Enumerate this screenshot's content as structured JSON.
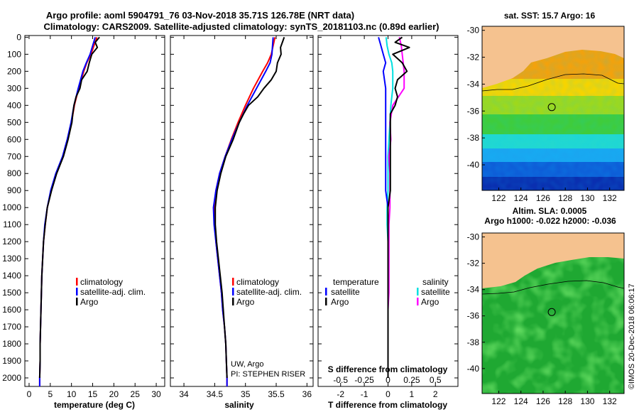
{
  "header": {
    "line1": "Argo profile: aoml 5904791_76 03-Nov-2018 35.71S 126.78E (NRT data)",
    "line2": "Climatology: CARS2009. Satellite-adjusted climatology: synTS_20181103.nc (0.89d earlier)"
  },
  "depth_ticks": [
    "0",
    "100",
    "200",
    "300",
    "400",
    "500",
    "600",
    "700",
    "800",
    "900",
    "1000",
    "1100",
    "1200",
    "1300",
    "1400",
    "1500",
    "1600",
    "1700",
    "1800",
    "1900",
    "2000"
  ],
  "colors": {
    "climatology": "#ff0000",
    "satellite": "#0000ff",
    "argo": "#000000",
    "satellite_s": "#00e0e0",
    "argo_s": "#ff00ff",
    "land": "#f5c28f"
  },
  "chart_data": [
    {
      "type": "line",
      "xlabel": "temperature (deg C)",
      "xticks": [
        "0",
        "5",
        "10",
        "15",
        "20",
        "25",
        "30"
      ],
      "xlim": [
        -1,
        32
      ],
      "ylim": [
        2050,
        -10
      ],
      "legend": [
        "climatology",
        "satellite-adj. clim.",
        "Argo"
      ],
      "series": [
        {
          "name": "climatology",
          "depth": [
            0,
            50,
            100,
            150,
            200,
            300,
            400,
            500,
            600,
            700,
            800,
            900,
            1000,
            1100,
            1200,
            1300,
            1400,
            1500,
            1600,
            1700,
            1800,
            1900,
            2000,
            2050
          ],
          "values": [
            16.0,
            15.3,
            14.6,
            13.6,
            12.9,
            11.7,
            10.7,
            10.0,
            9.1,
            8.0,
            6.4,
            5.2,
            4.3,
            3.8,
            3.4,
            3.2,
            3.0,
            2.9,
            2.8,
            2.7,
            2.6,
            2.6,
            2.5,
            2.5
          ]
        },
        {
          "name": "satellite-adj. clim.",
          "depth": [
            0,
            50,
            100,
            150,
            200,
            300,
            400,
            500,
            600,
            700,
            800,
            900,
            1000,
            1100,
            1200,
            1300,
            1400,
            1500,
            1600,
            1700,
            1800,
            1900,
            2000,
            2050
          ],
          "values": [
            15.6,
            15.0,
            14.4,
            13.5,
            12.7,
            11.6,
            10.6,
            9.9,
            9.0,
            7.9,
            6.3,
            5.1,
            4.3,
            3.7,
            3.4,
            3.2,
            3.0,
            2.9,
            2.8,
            2.7,
            2.6,
            2.6,
            2.5,
            2.5
          ]
        },
        {
          "name": "Argo",
          "depth": [
            0,
            30,
            60,
            100,
            150,
            200,
            250,
            300,
            350,
            400,
            450,
            500,
            600,
            700,
            800,
            900,
            1000,
            1100,
            1200,
            1300,
            1400,
            1500,
            1600,
            1700,
            1800,
            1900,
            2000
          ],
          "values": [
            16.6,
            15.6,
            16.1,
            14.8,
            14.2,
            13.7,
            12.4,
            12.0,
            11.1,
            10.6,
            10.3,
            10.1,
            9.2,
            8.1,
            6.5,
            5.3,
            4.3,
            3.8,
            3.4,
            3.2,
            3.0,
            2.9,
            2.8,
            2.7,
            2.6,
            2.6,
            2.5
          ]
        }
      ]
    },
    {
      "type": "line",
      "xlabel": "salinity",
      "xticks": [
        "34",
        "34.5",
        "35",
        "35.5",
        "36"
      ],
      "xlim": [
        33.78,
        36.1
      ],
      "ylim": [
        2050,
        -10
      ],
      "legend": [
        "climatology",
        "satellite-adj. clim.",
        "Argo"
      ],
      "annotations": [
        "UW, Argo",
        "PI: STEPHEN RISER"
      ],
      "series": [
        {
          "name": "climatology",
          "depth": [
            0,
            50,
            100,
            150,
            200,
            300,
            400,
            500,
            600,
            700,
            800,
            900,
            1000,
            1100,
            1200,
            1300,
            1400,
            1500,
            1600,
            1700,
            1800,
            1900,
            2000,
            2050
          ],
          "values": [
            35.48,
            35.45,
            35.42,
            35.36,
            35.28,
            35.13,
            35.0,
            34.88,
            34.77,
            34.67,
            34.58,
            34.52,
            34.49,
            34.5,
            34.52,
            34.55,
            34.58,
            34.61,
            34.63,
            34.66,
            34.68,
            34.69,
            34.7,
            34.7
          ]
        },
        {
          "name": "satellite-adj. clim.",
          "depth": [
            0,
            50,
            100,
            150,
            200,
            300,
            400,
            500,
            600,
            700,
            800,
            900,
            1000,
            1100,
            1200,
            1300,
            1400,
            1500,
            1600,
            1700,
            1800,
            1900,
            2000,
            2050
          ],
          "values": [
            35.45,
            35.44,
            35.43,
            35.4,
            35.33,
            35.18,
            35.03,
            34.9,
            34.78,
            34.67,
            34.58,
            34.52,
            34.48,
            34.49,
            34.52,
            34.55,
            34.58,
            34.61,
            34.63,
            34.66,
            34.68,
            34.69,
            34.7,
            34.7
          ]
        },
        {
          "name": "Argo",
          "depth": [
            0,
            30,
            60,
            100,
            150,
            200,
            250,
            300,
            350,
            400,
            450,
            500,
            600,
            700,
            800,
            900,
            1000,
            1100,
            1200,
            1300,
            1400,
            1500,
            1600,
            1700,
            1800,
            1900,
            2000
          ],
          "values": [
            35.63,
            35.6,
            35.57,
            35.58,
            35.52,
            35.5,
            35.42,
            35.3,
            35.2,
            35.05,
            34.97,
            34.9,
            34.8,
            34.68,
            34.6,
            34.54,
            34.51,
            34.51,
            34.53,
            34.56,
            34.59,
            34.62,
            34.64,
            34.66,
            34.68,
            34.69,
            34.7
          ]
        }
      ]
    },
    {
      "type": "line",
      "xlabel": "T difference from climatology",
      "xlabel_top": "S difference from climatology",
      "xticks": [
        "-2",
        "-1",
        "0",
        "1",
        "2"
      ],
      "xticks_top": [
        "-0.5",
        "-0.25",
        "0",
        "0.25",
        "0.5"
      ],
      "xlim": [
        -2.95,
        2.95
      ],
      "ylim": [
        2050,
        -10
      ],
      "legend_temperature": [
        "temperature",
        "satellite",
        "Argo"
      ],
      "legend_salinity": [
        "salinity",
        "satellite",
        "Argo"
      ],
      "series": [
        {
          "name": "satellite",
          "depth": [
            0,
            50,
            100,
            150,
            200,
            300,
            400,
            500,
            600,
            700,
            800,
            900,
            1000,
            1100,
            1200,
            1300,
            1400,
            1500,
            1600,
            1700,
            1800,
            1900,
            2000
          ],
          "values": [
            -0.4,
            -0.3,
            -0.2,
            -0.1,
            -0.2,
            -0.1,
            -0.1,
            -0.1,
            -0.1,
            -0.1,
            -0.1,
            -0.1,
            0,
            0,
            0,
            0,
            0,
            0,
            0,
            0,
            0,
            0,
            0
          ]
        },
        {
          "name": "Argo",
          "depth": [
            0,
            30,
            60,
            100,
            150,
            200,
            250,
            300,
            350,
            400,
            450,
            500,
            600,
            700,
            800,
            900,
            1000,
            1100,
            1200,
            1300,
            1400,
            1500,
            1600,
            1700,
            1800,
            1900,
            2000
          ],
          "values": [
            0.6,
            0.3,
            0.9,
            0.2,
            0.6,
            0.8,
            0.4,
            0.3,
            0.4,
            0.3,
            0.1,
            0.1,
            0.1,
            0.1,
            0.1,
            0.1,
            0,
            0,
            0,
            0,
            0,
            0,
            0,
            0,
            0,
            0,
            0
          ]
        },
        {
          "name": "satellite salinity",
          "depth": [
            0,
            50,
            100,
            150,
            200,
            300,
            400,
            500,
            600,
            700,
            800,
            900,
            1000,
            1100,
            1200,
            1300,
            1400,
            1500,
            1600,
            1700,
            1800,
            1900,
            2000
          ],
          "values": [
            -0.02,
            -0.01,
            0.01,
            0.04,
            0.05,
            0.05,
            0.03,
            0.02,
            0.01,
            0,
            0,
            0,
            -0.01,
            -0.01,
            0,
            0,
            0,
            0,
            0,
            0,
            0,
            0,
            0
          ]
        },
        {
          "name": "Argo salinity",
          "depth": [
            0,
            50,
            100,
            150,
            200,
            300,
            400,
            500,
            600,
            700,
            800,
            900,
            1000,
            1100,
            1200,
            1300,
            1400,
            1500,
            1600,
            1700,
            1800,
            1900,
            2000
          ],
          "values": [
            0.12,
            0.14,
            0.15,
            0.16,
            0.17,
            0.17,
            0.05,
            0.02,
            0.03,
            0.01,
            0.02,
            0.02,
            0.02,
            0.01,
            0.01,
            0.01,
            0.01,
            0.01,
            0,
            0,
            0,
            0,
            0
          ]
        }
      ]
    },
    {
      "type": "heatmap",
      "title": "sat. SST: 15.7 Argo: 16",
      "xticks": [
        "122",
        "124",
        "126",
        "128",
        "130",
        "132"
      ],
      "yticks": [
        "-30",
        "-32",
        "-34",
        "-36",
        "-38",
        "-40"
      ],
      "xlim": [
        120.5,
        133.3
      ],
      "ylim": [
        -41.9,
        -29.7
      ],
      "marker": {
        "lon": 126.78,
        "lat": -35.71
      }
    },
    {
      "type": "heatmap",
      "title": "Altim. SLA: 0.0005",
      "subtitle": "Argo h1000: -0.022 h2000: -0.036",
      "xticks": [
        "122",
        "124",
        "126",
        "128",
        "130",
        "132"
      ],
      "yticks": [
        "-30",
        "-32",
        "-34",
        "-36",
        "-38",
        "-40"
      ],
      "xlim": [
        120.5,
        133.3
      ],
      "ylim": [
        -41.9,
        -29.7
      ],
      "marker": {
        "lon": 126.78,
        "lat": -35.71
      }
    }
  ],
  "watermark": "©IMOS 20-Dec-2018 06:06:17"
}
